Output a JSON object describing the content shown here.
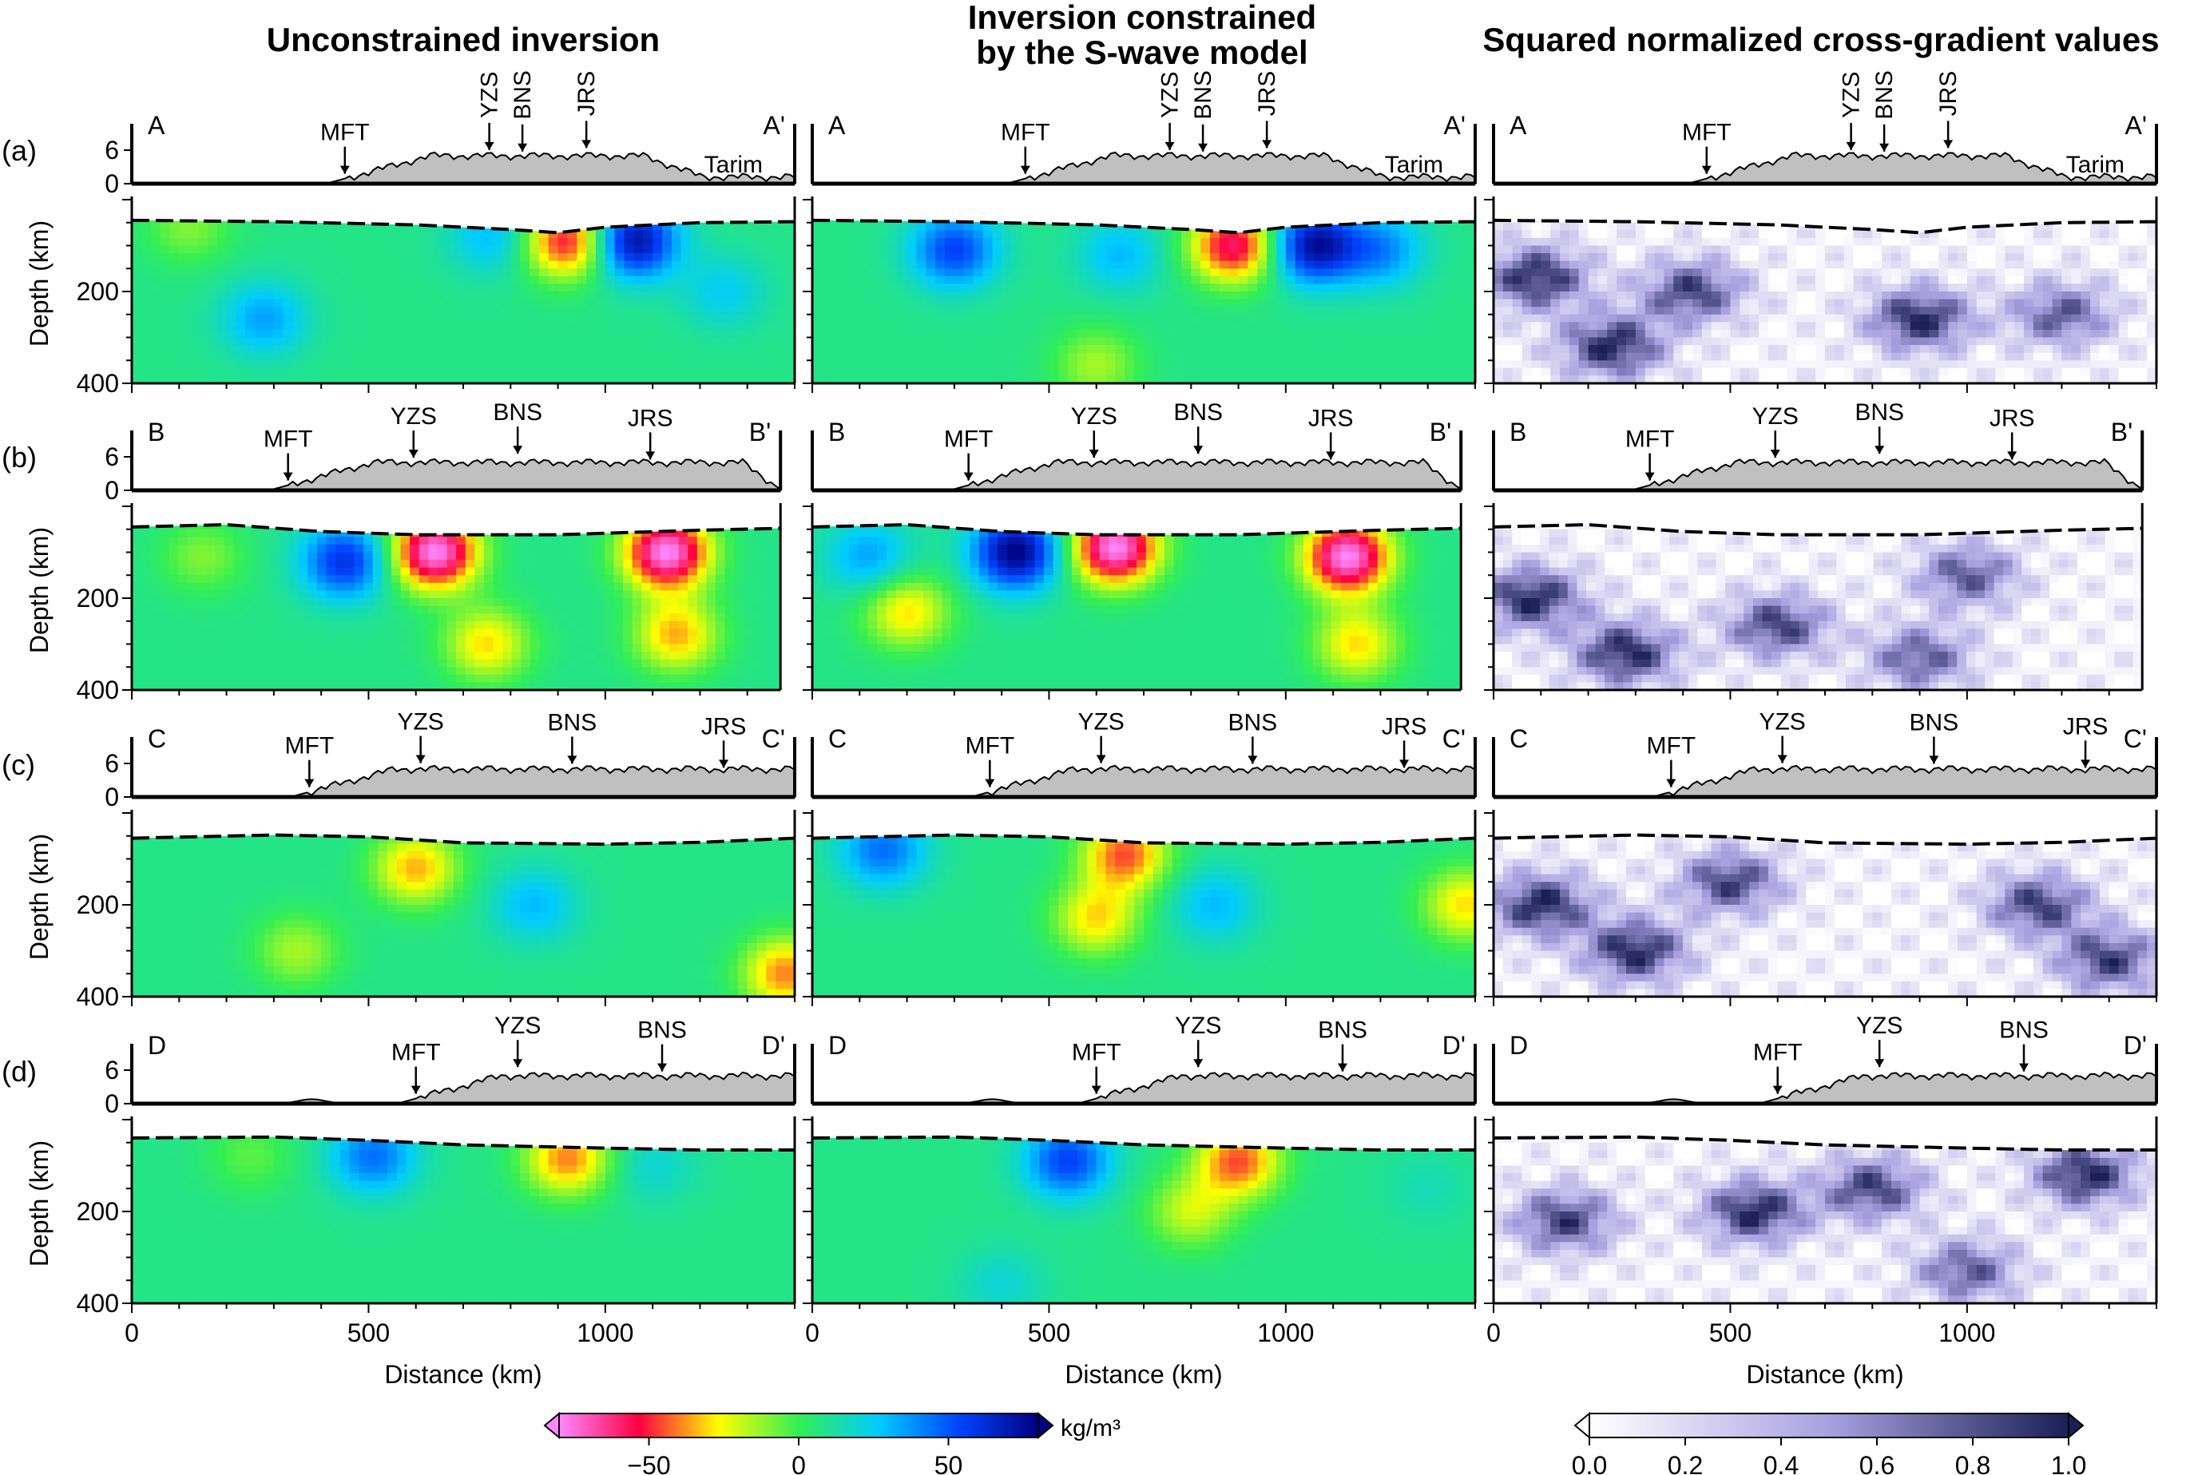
{
  "columns": [
    {
      "title": "Unconstrained inversion"
    },
    {
      "title": "Inversion constrained\nby the S-wave model"
    },
    {
      "title": "Squared normalized cross-gradient values"
    }
  ],
  "rows": [
    {
      "label": "(a)",
      "start": "A",
      "end": "A'",
      "terrane": "Tarim",
      "markers": [
        {
          "name": "MFT",
          "x": 450
        },
        {
          "name": "YZS",
          "x": 755
        },
        {
          "name": "BNS",
          "x": 825
        },
        {
          "name": "JRS",
          "x": 960
        }
      ],
      "moho": [
        [
          0,
          45
        ],
        [
          300,
          48
        ],
        [
          600,
          55
        ],
        [
          800,
          65
        ],
        [
          900,
          72
        ],
        [
          1000,
          60
        ],
        [
          1200,
          50
        ],
        [
          1400,
          48
        ]
      ]
    },
    {
      "label": "(b)",
      "start": "B",
      "end": "B'",
      "terrane": "",
      "markers": [
        {
          "name": "MFT",
          "x": 330
        },
        {
          "name": "YZS",
          "x": 595
        },
        {
          "name": "BNS",
          "x": 815
        },
        {
          "name": "JRS",
          "x": 1095
        }
      ],
      "moho": [
        [
          0,
          45
        ],
        [
          200,
          40
        ],
        [
          400,
          55
        ],
        [
          600,
          62
        ],
        [
          900,
          62
        ],
        [
          1200,
          52
        ],
        [
          1370,
          48
        ]
      ]
    },
    {
      "label": "(c)",
      "start": "C",
      "end": "C'",
      "terrane": "",
      "markers": [
        {
          "name": "MFT",
          "x": 375
        },
        {
          "name": "YZS",
          "x": 610
        },
        {
          "name": "BNS",
          "x": 930
        },
        {
          "name": "JRS",
          "x": 1250
        }
      ],
      "moho": [
        [
          0,
          55
        ],
        [
          300,
          48
        ],
        [
          500,
          52
        ],
        [
          700,
          65
        ],
        [
          1000,
          68
        ],
        [
          1200,
          64
        ],
        [
          1400,
          55
        ]
      ]
    },
    {
      "label": "(d)",
      "start": "D",
      "end": "D'",
      "terrane": "",
      "markers": [
        {
          "name": "MFT",
          "x": 600
        },
        {
          "name": "YZS",
          "x": 815
        },
        {
          "name": "BNS",
          "x": 1120
        }
      ],
      "moho": [
        [
          0,
          40
        ],
        [
          300,
          38
        ],
        [
          500,
          45
        ],
        [
          700,
          55
        ],
        [
          1000,
          62
        ],
        [
          1200,
          66
        ],
        [
          1400,
          66
        ]
      ]
    }
  ],
  "axes": {
    "ylabel": "Depth (km)",
    "xlabel": "Distance (km)",
    "xticks": [
      "0",
      "500",
      "1000"
    ],
    "yticks": [
      "200",
      "400"
    ],
    "topo_ticks": [
      "6",
      "0"
    ]
  },
  "colorbars": {
    "density": {
      "unit": "kg/m³",
      "ticks": [
        "−50",
        "0",
        "50"
      ],
      "range": [
        -80,
        80
      ]
    },
    "crossgrad": {
      "ticks": [
        "0.0",
        "0.2",
        "0.4",
        "0.6",
        "0.8",
        "1.0"
      ],
      "range": [
        0,
        1
      ]
    }
  },
  "colors": {
    "topo_fill": "#c0c0c0",
    "density_scale": [
      "#ff88ff",
      "#ff0040",
      "#ffff00",
      "#33ee55",
      "#00ccff",
      "#0044ff",
      "#000080"
    ],
    "crossgrad_scale": [
      "#ffffff",
      "#a9a0e0",
      "#1a1f55"
    ]
  },
  "chart_data": [
    {
      "type": "heatmap",
      "panel": "a-unconstrained",
      "x_range": [
        0,
        1400
      ],
      "y_range": [
        0,
        400
      ],
      "unit": "kg/m3",
      "anomalies": [
        {
          "x": 120,
          "depth": 60,
          "value": -10
        },
        {
          "x": 280,
          "depth": 260,
          "value": 35
        },
        {
          "x": 760,
          "depth": 80,
          "value": 30
        },
        {
          "x": 920,
          "depth": 90,
          "value": -55
        },
        {
          "x": 1060,
          "depth": 90,
          "value": 75
        },
        {
          "x": 1250,
          "depth": 200,
          "value": 25
        }
      ]
    },
    {
      "type": "heatmap",
      "panel": "a-constrained",
      "x_range": [
        0,
        1400
      ],
      "y_range": [
        0,
        400
      ],
      "unit": "kg/m3",
      "anomalies": [
        {
          "x": 300,
          "depth": 110,
          "value": 55
        },
        {
          "x": 650,
          "depth": 120,
          "value": 30
        },
        {
          "x": 890,
          "depth": 100,
          "value": -60
        },
        {
          "x": 1060,
          "depth": 100,
          "value": 75
        },
        {
          "x": 1200,
          "depth": 110,
          "value": 40
        },
        {
          "x": 600,
          "depth": 360,
          "value": -15
        }
      ]
    },
    {
      "type": "heatmap",
      "panel": "a-crossgrad",
      "x_range": [
        0,
        1400
      ],
      "y_range": [
        0,
        400
      ],
      "unit": "",
      "anomalies": [
        {
          "x": 90,
          "depth": 170,
          "value": 0.9
        },
        {
          "x": 250,
          "depth": 320,
          "value": 0.9
        },
        {
          "x": 420,
          "depth": 200,
          "value": 0.8
        },
        {
          "x": 900,
          "depth": 260,
          "value": 0.9
        },
        {
          "x": 1200,
          "depth": 250,
          "value": 0.7
        }
      ]
    },
    {
      "type": "heatmap",
      "panel": "b-unconstrained",
      "x_range": [
        0,
        1370
      ],
      "y_range": [
        0,
        400
      ],
      "unit": "kg/m3",
      "anomalies": [
        {
          "x": 450,
          "depth": 120,
          "value": 60
        },
        {
          "x": 640,
          "depth": 100,
          "value": -80
        },
        {
          "x": 1130,
          "depth": 100,
          "value": -80
        },
        {
          "x": 1150,
          "depth": 280,
          "value": -35
        },
        {
          "x": 150,
          "depth": 110,
          "value": -10
        },
        {
          "x": 750,
          "depth": 300,
          "value": -30
        }
      ]
    },
    {
      "type": "heatmap",
      "panel": "b-constrained",
      "x_range": [
        0,
        1370
      ],
      "y_range": [
        0,
        400
      ],
      "unit": "kg/m3",
      "anomalies": [
        {
          "x": 120,
          "depth": 110,
          "value": 35
        },
        {
          "x": 200,
          "depth": 230,
          "value": -30
        },
        {
          "x": 430,
          "depth": 100,
          "value": 80
        },
        {
          "x": 640,
          "depth": 90,
          "value": -80
        },
        {
          "x": 1130,
          "depth": 110,
          "value": -80
        },
        {
          "x": 1150,
          "depth": 300,
          "value": -30
        }
      ]
    },
    {
      "type": "heatmap",
      "panel": "b-crossgrad",
      "x_range": [
        0,
        1370
      ],
      "y_range": [
        0,
        400
      ],
      "unit": "",
      "anomalies": [
        {
          "x": 80,
          "depth": 200,
          "value": 0.9
        },
        {
          "x": 280,
          "depth": 320,
          "value": 0.9
        },
        {
          "x": 600,
          "depth": 260,
          "value": 0.8
        },
        {
          "x": 900,
          "depth": 330,
          "value": 0.7
        },
        {
          "x": 1000,
          "depth": 150,
          "value": 0.7
        }
      ]
    },
    {
      "type": "heatmap",
      "panel": "c-unconstrained",
      "x_range": [
        0,
        1400
      ],
      "y_range": [
        0,
        400
      ],
      "unit": "kg/m3",
      "anomalies": [
        {
          "x": 600,
          "depth": 120,
          "value": -35
        },
        {
          "x": 850,
          "depth": 200,
          "value": 30
        },
        {
          "x": 1380,
          "depth": 350,
          "value": -40
        },
        {
          "x": 350,
          "depth": 300,
          "value": -15
        }
      ]
    },
    {
      "type": "heatmap",
      "panel": "c-constrained",
      "x_range": [
        0,
        1400
      ],
      "y_range": [
        0,
        400
      ],
      "unit": "kg/m3",
      "anomalies": [
        {
          "x": 150,
          "depth": 80,
          "value": 45
        },
        {
          "x": 660,
          "depth": 90,
          "value": -45
        },
        {
          "x": 600,
          "depth": 230,
          "value": -30
        },
        {
          "x": 850,
          "depth": 200,
          "value": 30
        },
        {
          "x": 1380,
          "depth": 200,
          "value": -30
        }
      ]
    },
    {
      "type": "heatmap",
      "panel": "c-crossgrad",
      "x_range": [
        0,
        1400
      ],
      "y_range": [
        0,
        400
      ],
      "unit": "",
      "anomalies": [
        {
          "x": 100,
          "depth": 200,
          "value": 0.9
        },
        {
          "x": 300,
          "depth": 300,
          "value": 0.9
        },
        {
          "x": 500,
          "depth": 150,
          "value": 0.8
        },
        {
          "x": 1150,
          "depth": 200,
          "value": 0.8
        },
        {
          "x": 1300,
          "depth": 320,
          "value": 0.8
        }
      ]
    },
    {
      "type": "heatmap",
      "panel": "d-unconstrained",
      "x_range": [
        0,
        1400
      ],
      "y_range": [
        0,
        400
      ],
      "unit": "kg/m3",
      "anomalies": [
        {
          "x": 510,
          "depth": 80,
          "value": 45
        },
        {
          "x": 920,
          "depth": 85,
          "value": -40
        },
        {
          "x": 1100,
          "depth": 100,
          "value": 20
        },
        {
          "x": 250,
          "depth": 80,
          "value": -5
        }
      ]
    },
    {
      "type": "heatmap",
      "panel": "d-constrained",
      "x_range": [
        0,
        1400
      ],
      "y_range": [
        0,
        400
      ],
      "unit": "kg/m3",
      "anomalies": [
        {
          "x": 540,
          "depth": 90,
          "value": 55
        },
        {
          "x": 900,
          "depth": 90,
          "value": -45
        },
        {
          "x": 800,
          "depth": 200,
          "value": -20
        },
        {
          "x": 400,
          "depth": 360,
          "value": 20
        },
        {
          "x": 1300,
          "depth": 150,
          "value": 15
        }
      ]
    },
    {
      "type": "heatmap",
      "panel": "d-crossgrad",
      "x_range": [
        0,
        1400
      ],
      "y_range": [
        0,
        400
      ],
      "unit": "",
      "anomalies": [
        {
          "x": 150,
          "depth": 220,
          "value": 0.8
        },
        {
          "x": 550,
          "depth": 200,
          "value": 0.9
        },
        {
          "x": 800,
          "depth": 150,
          "value": 0.8
        },
        {
          "x": 1250,
          "depth": 120,
          "value": 0.9
        },
        {
          "x": 1000,
          "depth": 330,
          "value": 0.7
        }
      ]
    }
  ]
}
